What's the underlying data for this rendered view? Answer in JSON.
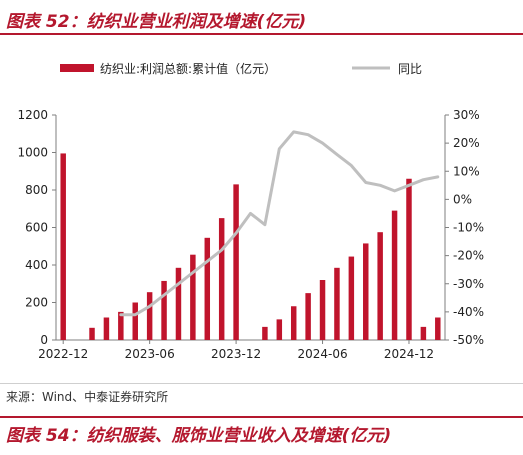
{
  "header": {
    "title": "图表 52：纺织业营业利润及增速(亿元)"
  },
  "footer": {
    "source": "来源：Wind、中泰证券研究所",
    "next_title": "图表 54：纺织服装、服饰业营业收入及增速(亿元)"
  },
  "colors": {
    "bar": "#c0142c",
    "line": "#bfbfbf",
    "accent": "#b4182e",
    "axis": "#7f7f7f"
  },
  "chart_data": {
    "type": "bar",
    "categories": [
      "2022-12",
      "2023-01",
      "2023-02",
      "2023-03",
      "2023-04",
      "2023-05",
      "2023-06",
      "2023-07",
      "2023-08",
      "2023-09",
      "2023-10",
      "2023-11",
      "2023-12",
      "2024-01",
      "2024-02",
      "2024-03",
      "2024-04",
      "2024-05",
      "2024-06",
      "2024-07",
      "2024-08",
      "2024-09",
      "2024-10",
      "2024-11",
      "2024-12",
      "2025-01",
      "2025-02"
    ],
    "x_tick_labels": [
      "2022-12",
      "2023-06",
      "2023-12",
      "2024-06",
      "2024-12"
    ],
    "x_tick_indices": [
      0,
      6,
      12,
      18,
      24
    ],
    "series": [
      {
        "name": "纺织业:利润总额:累计值（亿元）",
        "axis": "left",
        "type": "bar",
        "values": [
          995,
          null,
          65,
          120,
          150,
          200,
          255,
          315,
          385,
          455,
          545,
          650,
          830,
          null,
          70,
          110,
          180,
          250,
          320,
          385,
          445,
          515,
          575,
          690,
          860,
          70,
          120
        ]
      },
      {
        "name": "同比",
        "axis": "right",
        "type": "line",
        "unit": "%",
        "values": [
          null,
          null,
          null,
          null,
          -41,
          -41,
          -38,
          -34,
          -30,
          -26,
          -22,
          -18,
          -12,
          -5,
          -9,
          18,
          24,
          23,
          20,
          16,
          12,
          6,
          5,
          3,
          5,
          7,
          8
        ]
      }
    ],
    "y_left": {
      "lim": [
        0,
        1200
      ],
      "ticks": [
        0,
        200,
        400,
        600,
        800,
        1000,
        1200
      ]
    },
    "y_right": {
      "lim": [
        -50,
        30
      ],
      "ticks": [
        -50,
        -40,
        -30,
        -20,
        -10,
        0,
        10,
        20,
        30
      ],
      "tick_labels": [
        "-50%",
        "-40%",
        "-30%",
        "-20%",
        "-10%",
        "0%",
        "10%",
        "20%",
        "30%"
      ]
    },
    "legend": {
      "position": "top"
    },
    "grid": false
  }
}
